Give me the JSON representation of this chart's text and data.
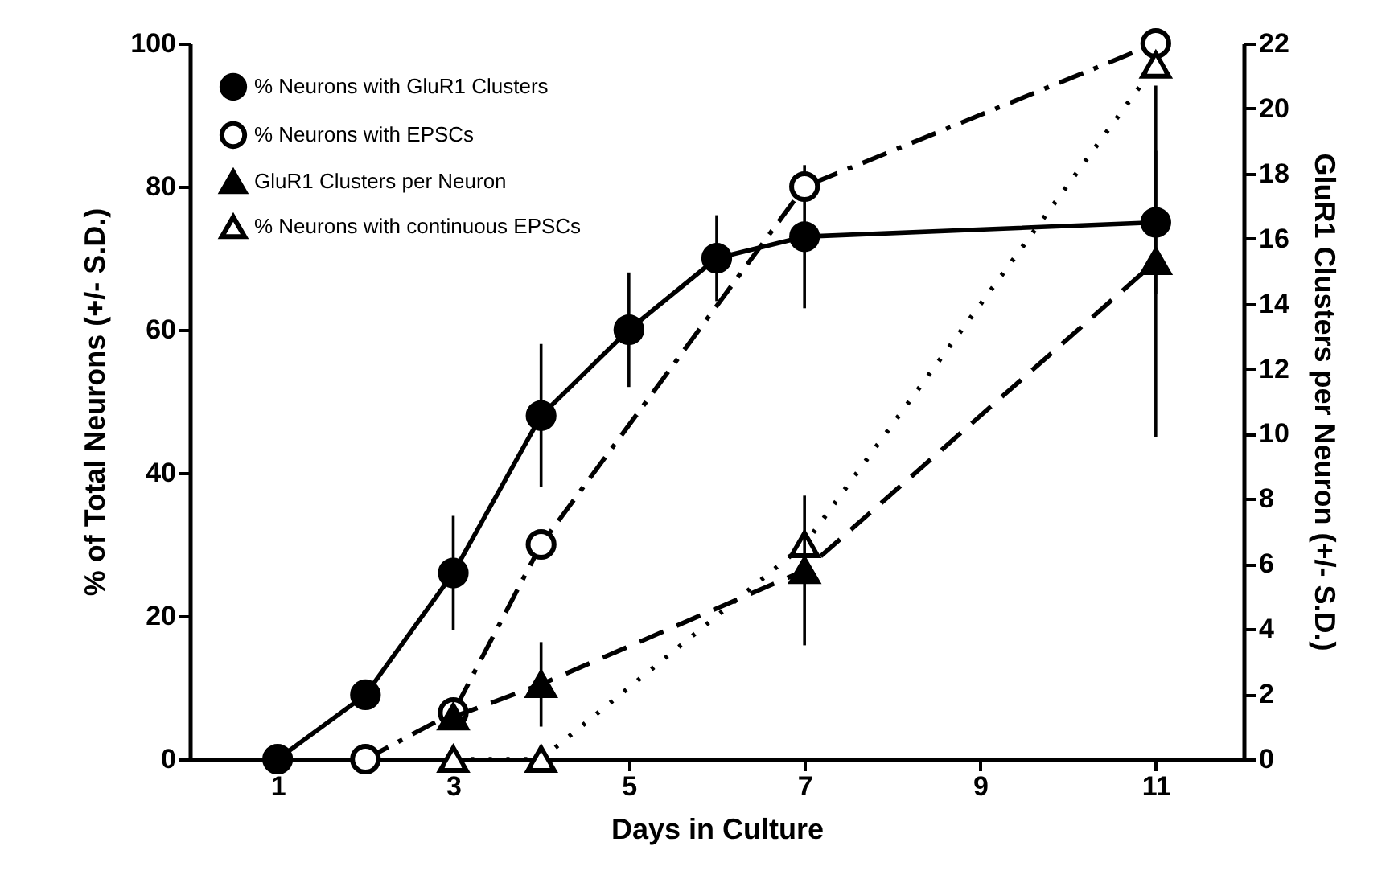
{
  "chart_data": {
    "type": "line",
    "xlabel": "Days in Culture",
    "ylabel": "% of Total Neurons (+/- S.D.)",
    "y2label": "GluR1 Clusters per Neuron (+/- S.D.)",
    "xlim": [
      0,
      12
    ],
    "xticks": [
      1,
      3,
      5,
      7,
      9,
      11
    ],
    "ylim": [
      0,
      100
    ],
    "yticks": [
      0,
      20,
      40,
      60,
      80,
      100
    ],
    "y2lim": [
      0,
      22
    ],
    "y2ticks": [
      0,
      2,
      4,
      6,
      8,
      10,
      12,
      14,
      16,
      18,
      20,
      22
    ],
    "grid": false,
    "legend": "top left",
    "series": [
      {
        "name": "% Neurons with GluR1 Clusters",
        "color": "#000000",
        "marker": "circle",
        "colors": [
          "#000000",
          "#000000",
          "#000000",
          "#000000",
          "#000000",
          "#000000",
          "#000000",
          "#000000"
        ],
        "line_style": "solid",
        "x": [
          1,
          2,
          3,
          4,
          5,
          6,
          7,
          11
        ],
        "values": [
          0,
          9,
          26,
          48,
          60,
          70,
          73,
          75
        ],
        "errors": [
          null,
          null,
          8,
          10,
          8,
          6,
          10,
          10
        ]
      },
      {
        "name": "% Neurons with EPSCs",
        "color": "#000000",
        "marker": "circle",
        "colors": [
          "#ffffff",
          "#ffffff",
          "#ffffff",
          "#ffffff",
          "#ffffff"
        ],
        "line_style": "dashdot",
        "x": [
          2,
          3,
          4,
          7,
          11
        ],
        "values": [
          0,
          6.5,
          30,
          80,
          100
        ]
      },
      {
        "name": "GluR1 Clusters per Neuron",
        "color": "#000000",
        "marker": "triangle",
        "colors": [
          "#000000",
          "#000000",
          "#000000",
          "#000000"
        ],
        "line_style": "dashed",
        "axis": "y2",
        "x": [
          3,
          4,
          7,
          11
        ],
        "values": [
          1.3,
          2.3,
          5.8,
          15.3
        ],
        "errors": [
          null,
          1.3,
          2.3,
          5.4
        ]
      },
      {
        "name": "% Neurons with continuous EPSCs",
        "color": "#000000",
        "marker": "triangle",
        "colors": [
          "#ffffff",
          "#ffffff",
          "#ffffff",
          "#ffffff"
        ],
        "line_style": "dotted",
        "x": [
          3,
          4,
          7,
          11
        ],
        "values": [
          0,
          0,
          30,
          97
        ]
      }
    ]
  }
}
